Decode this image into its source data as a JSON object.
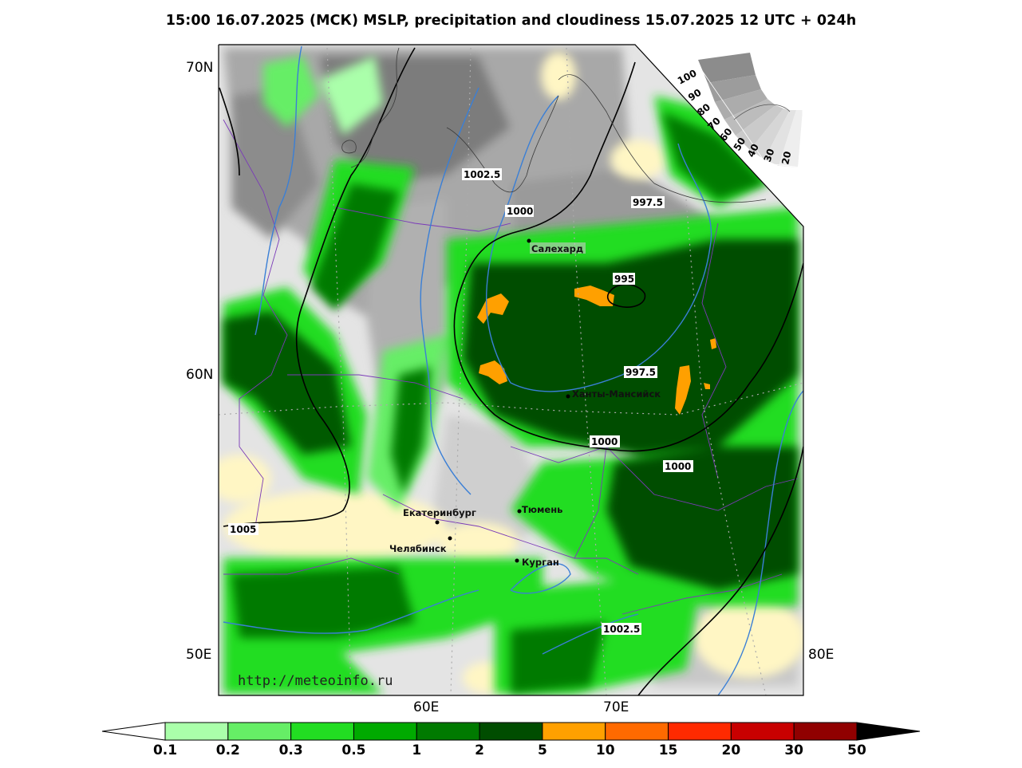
{
  "title": "15:00 16.07.2025 (МСК) MSLP, precipitation and cloudiness 15.07.2025 12 UTC + 024h",
  "axes": {
    "lat_labels": [
      "70N",
      "60N",
      "50E"
    ],
    "lon_labels": [
      "60E",
      "70E",
      "80E"
    ]
  },
  "cities": [
    {
      "name": "Салехард"
    },
    {
      "name": "Ханты-Мансийск"
    },
    {
      "name": "Екатеринбург"
    },
    {
      "name": "Тюмень"
    },
    {
      "name": "Челябинск"
    },
    {
      "name": "Курган"
    }
  ],
  "isobar_labels": [
    "1002.5",
    "1000",
    "997.5",
    "995",
    "997.5",
    "1000",
    "1000",
    "1005",
    "1002.5"
  ],
  "cloud_scale": [
    "100",
    "90",
    "80",
    "70",
    "60",
    "50",
    "40",
    "30",
    "20"
  ],
  "url": "http://meteoinfo.ru",
  "colorbar": {
    "labels": [
      "0.1",
      "0.2",
      "0.3",
      "0.5",
      "1",
      "2",
      "5",
      "10",
      "15",
      "20",
      "30",
      "50"
    ],
    "colors": [
      "#aaffaa",
      "#66ee66",
      "#22dd22",
      "#00aa00",
      "#007a00",
      "#004d00",
      "#ffa000",
      "#ff6a00",
      "#ff2a00",
      "#c80000",
      "#900000"
    ],
    "low_color": "#ffffff",
    "high_color": "#000000"
  },
  "colors": {
    "isobar": "#000000",
    "isotherm": "#3a7fd6",
    "border": "#7a3ab8",
    "cloud_light": "#e6e6e6",
    "cloud_dark": "#8a8a8a",
    "clear": "#fff8c8"
  }
}
